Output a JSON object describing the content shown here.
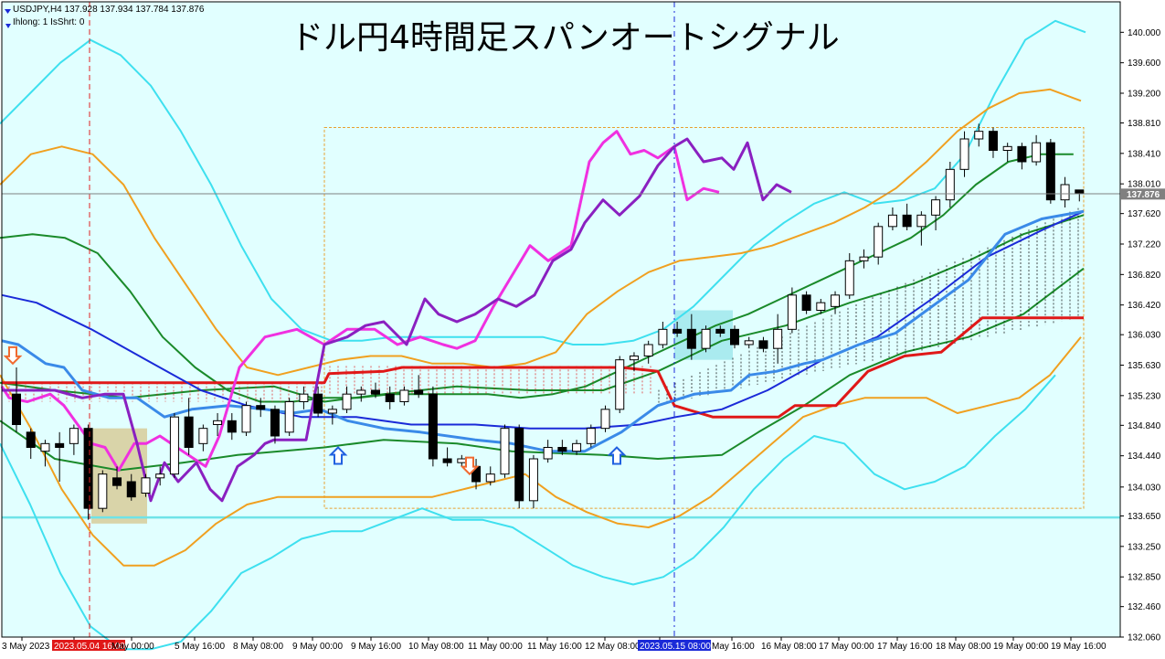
{
  "header": {
    "symbol_line": "USDJPY,H4  137.928 137.934 137.784 137.876",
    "indicator_line": "Ihlong: 1 IsShrt: 0"
  },
  "chart_data": {
    "type": "candlestick",
    "title": "ドル円4時間足スパンオートシグナル",
    "symbol": "USDJPY",
    "timeframe": "H4",
    "ohlc_header": {
      "open": 137.928,
      "high": 137.934,
      "low": 137.784,
      "close": 137.876
    },
    "current_price": "137.876",
    "ylim": [
      132.06,
      140.4
    ],
    "y_ticks": [
      "140.000",
      "139.600",
      "139.200",
      "138.810",
      "138.410",
      "138.010",
      "137.620",
      "137.220",
      "136.820",
      "136.420",
      "136.030",
      "135.630",
      "135.230",
      "134.840",
      "134.440",
      "134.030",
      "133.650",
      "133.250",
      "132.850",
      "132.460",
      "132.060"
    ],
    "x_ticks": [
      "3 May 2023",
      "2023.05.04 16:00",
      "May 00:00",
      "5 May 16:00",
      "8 May 08:00",
      "9 May 00:00",
      "9 May 16:00",
      "10 May 08:00",
      "11 May 00:00",
      "11 May 16:00",
      "12 May 08:00",
      "2023.05.15 08:00",
      "May 16:00",
      "16 May 08:00",
      "17 May 00:00",
      "17 May 16:00",
      "18 May 08:00",
      "19 May 00:00",
      "19 May 16:00"
    ],
    "highlighted_x_ticks": {
      "red": "2023.05.04 16:00",
      "blue": "2023.05.15 08:00"
    },
    "vertical_markers": [
      {
        "label": "2023.05.04 16:00",
        "color": "#e02020"
      },
      {
        "label": "2023.05.15 08:00",
        "color": "#1a2ad8"
      }
    ],
    "horizontal_lines": [
      {
        "value": 133.63,
        "color": "#6fe3e8"
      },
      {
        "value": 137.88,
        "color": "#808080"
      }
    ],
    "candles": [
      {
        "t": 1,
        "o": 135.25,
        "h": 135.6,
        "l": 134.75,
        "c": 134.85
      },
      {
        "t": 2,
        "o": 134.75,
        "h": 134.8,
        "l": 134.4,
        "c": 134.55
      },
      {
        "t": 3,
        "o": 134.5,
        "h": 134.65,
        "l": 134.3,
        "c": 134.6
      },
      {
        "t": 4,
        "o": 134.6,
        "h": 134.75,
        "l": 134.1,
        "c": 134.55
      },
      {
        "t": 5,
        "o": 134.6,
        "h": 134.85,
        "l": 134.45,
        "c": 134.8
      },
      {
        "t": 6,
        "o": 134.8,
        "h": 134.85,
        "l": 133.6,
        "c": 133.75
      },
      {
        "t": 7,
        "o": 133.75,
        "h": 134.25,
        "l": 133.7,
        "c": 134.2
      },
      {
        "t": 8,
        "o": 134.15,
        "h": 134.3,
        "l": 134.0,
        "c": 134.05
      },
      {
        "t": 9,
        "o": 134.1,
        "h": 134.2,
        "l": 133.85,
        "c": 133.9
      },
      {
        "t": 10,
        "o": 133.95,
        "h": 134.2,
        "l": 133.9,
        "c": 134.15
      },
      {
        "t": 11,
        "o": 134.15,
        "h": 134.3,
        "l": 134.05,
        "c": 134.2
      },
      {
        "t": 12,
        "o": 134.2,
        "h": 135.0,
        "l": 134.15,
        "c": 134.95
      },
      {
        "t": 13,
        "o": 134.95,
        "h": 135.2,
        "l": 134.45,
        "c": 134.55
      },
      {
        "t": 14,
        "o": 134.6,
        "h": 134.85,
        "l": 134.5,
        "c": 134.8
      },
      {
        "t": 15,
        "o": 134.85,
        "h": 135.0,
        "l": 134.7,
        "c": 134.9
      },
      {
        "t": 16,
        "o": 134.9,
        "h": 135.0,
        "l": 134.65,
        "c": 134.75
      },
      {
        "t": 17,
        "o": 134.75,
        "h": 135.15,
        "l": 134.7,
        "c": 135.1
      },
      {
        "t": 18,
        "o": 135.1,
        "h": 135.2,
        "l": 134.95,
        "c": 135.05
      },
      {
        "t": 19,
        "o": 135.05,
        "h": 135.1,
        "l": 134.6,
        "c": 134.7
      },
      {
        "t": 20,
        "o": 134.75,
        "h": 135.2,
        "l": 134.7,
        "c": 135.15
      },
      {
        "t": 21,
        "o": 135.15,
        "h": 135.35,
        "l": 135.05,
        "c": 135.25
      },
      {
        "t": 22,
        "o": 135.25,
        "h": 135.35,
        "l": 134.95,
        "c": 135.0
      },
      {
        "t": 23,
        "o": 135.0,
        "h": 135.1,
        "l": 134.85,
        "c": 135.05
      },
      {
        "t": 24,
        "o": 135.05,
        "h": 135.35,
        "l": 135.0,
        "c": 135.25
      },
      {
        "t": 25,
        "o": 135.25,
        "h": 135.35,
        "l": 135.15,
        "c": 135.3
      },
      {
        "t": 26,
        "o": 135.3,
        "h": 135.4,
        "l": 135.2,
        "c": 135.25
      },
      {
        "t": 27,
        "o": 135.25,
        "h": 135.35,
        "l": 135.05,
        "c": 135.15
      },
      {
        "t": 28,
        "o": 135.15,
        "h": 135.35,
        "l": 135.1,
        "c": 135.3
      },
      {
        "t": 29,
        "o": 135.3,
        "h": 135.5,
        "l": 135.2,
        "c": 135.25
      },
      {
        "t": 30,
        "o": 135.25,
        "h": 135.35,
        "l": 134.3,
        "c": 134.4
      },
      {
        "t": 31,
        "o": 134.4,
        "h": 134.55,
        "l": 134.3,
        "c": 134.35
      },
      {
        "t": 32,
        "o": 134.35,
        "h": 134.45,
        "l": 134.3,
        "c": 134.4
      },
      {
        "t": 33,
        "o": 134.3,
        "h": 134.4,
        "l": 134.0,
        "c": 134.1
      },
      {
        "t": 34,
        "o": 134.1,
        "h": 134.3,
        "l": 134.05,
        "c": 134.2
      },
      {
        "t": 35,
        "o": 134.2,
        "h": 134.85,
        "l": 134.15,
        "c": 134.8
      },
      {
        "t": 36,
        "o": 134.8,
        "h": 134.85,
        "l": 133.75,
        "c": 133.85
      },
      {
        "t": 37,
        "o": 133.85,
        "h": 134.45,
        "l": 133.75,
        "c": 134.4
      },
      {
        "t": 38,
        "o": 134.4,
        "h": 134.65,
        "l": 134.35,
        "c": 134.55
      },
      {
        "t": 39,
        "o": 134.55,
        "h": 134.65,
        "l": 134.45,
        "c": 134.5
      },
      {
        "t": 40,
        "o": 134.5,
        "h": 134.65,
        "l": 134.45,
        "c": 134.6
      },
      {
        "t": 41,
        "o": 134.6,
        "h": 134.85,
        "l": 134.55,
        "c": 134.8
      },
      {
        "t": 42,
        "o": 134.8,
        "h": 135.1,
        "l": 134.75,
        "c": 135.05
      },
      {
        "t": 43,
        "o": 135.05,
        "h": 135.75,
        "l": 135.0,
        "c": 135.7
      },
      {
        "t": 44,
        "o": 135.7,
        "h": 135.8,
        "l": 135.55,
        "c": 135.75
      },
      {
        "t": 45,
        "o": 135.75,
        "h": 135.95,
        "l": 135.65,
        "c": 135.9
      },
      {
        "t": 46,
        "o": 135.9,
        "h": 136.2,
        "l": 135.85,
        "c": 136.1
      },
      {
        "t": 47,
        "o": 136.1,
        "h": 136.2,
        "l": 136.0,
        "c": 136.05
      },
      {
        "t": 48,
        "o": 136.1,
        "h": 136.3,
        "l": 135.7,
        "c": 135.85
      },
      {
        "t": 49,
        "o": 135.85,
        "h": 136.15,
        "l": 135.8,
        "c": 136.1
      },
      {
        "t": 50,
        "o": 136.1,
        "h": 136.15,
        "l": 136.0,
        "c": 136.05
      },
      {
        "t": 51,
        "o": 136.1,
        "h": 136.15,
        "l": 135.85,
        "c": 135.9
      },
      {
        "t": 52,
        "o": 135.9,
        "h": 136.0,
        "l": 135.85,
        "c": 135.95
      },
      {
        "t": 53,
        "o": 135.95,
        "h": 136.0,
        "l": 135.8,
        "c": 135.85
      },
      {
        "t": 54,
        "o": 135.85,
        "h": 136.3,
        "l": 135.65,
        "c": 136.1
      },
      {
        "t": 55,
        "o": 136.1,
        "h": 136.65,
        "l": 136.05,
        "c": 136.55
      },
      {
        "t": 56,
        "o": 136.55,
        "h": 136.6,
        "l": 136.3,
        "c": 136.35
      },
      {
        "t": 57,
        "o": 136.35,
        "h": 136.5,
        "l": 136.3,
        "c": 136.45
      },
      {
        "t": 58,
        "o": 136.4,
        "h": 136.6,
        "l": 136.3,
        "c": 136.55
      },
      {
        "t": 59,
        "o": 136.55,
        "h": 137.1,
        "l": 136.5,
        "c": 137.0
      },
      {
        "t": 60,
        "o": 137.0,
        "h": 137.15,
        "l": 136.9,
        "c": 137.05
      },
      {
        "t": 61,
        "o": 137.05,
        "h": 137.5,
        "l": 136.95,
        "c": 137.45
      },
      {
        "t": 62,
        "o": 137.45,
        "h": 137.7,
        "l": 137.4,
        "c": 137.6
      },
      {
        "t": 63,
        "o": 137.6,
        "h": 137.75,
        "l": 137.4,
        "c": 137.45
      },
      {
        "t": 64,
        "o": 137.45,
        "h": 137.65,
        "l": 137.2,
        "c": 137.6
      },
      {
        "t": 65,
        "o": 137.6,
        "h": 137.85,
        "l": 137.4,
        "c": 137.8
      },
      {
        "t": 66,
        "o": 137.8,
        "h": 138.3,
        "l": 137.7,
        "c": 138.2
      },
      {
        "t": 67,
        "o": 138.2,
        "h": 138.7,
        "l": 138.1,
        "c": 138.6
      },
      {
        "t": 68,
        "o": 138.6,
        "h": 138.8,
        "l": 138.5,
        "c": 138.7
      },
      {
        "t": 69,
        "o": 138.7,
        "h": 138.75,
        "l": 138.35,
        "c": 138.45
      },
      {
        "t": 70,
        "o": 138.45,
        "h": 138.55,
        "l": 138.3,
        "c": 138.5
      },
      {
        "t": 71,
        "o": 138.5,
        "h": 138.55,
        "l": 138.2,
        "c": 138.3
      },
      {
        "t": 72,
        "o": 138.3,
        "h": 138.65,
        "l": 138.25,
        "c": 138.55
      },
      {
        "t": 73,
        "o": 138.55,
        "h": 138.6,
        "l": 137.75,
        "c": 137.8
      },
      {
        "t": 74,
        "o": 137.8,
        "h": 138.1,
        "l": 137.7,
        "c": 138.0
      },
      {
        "t": 75,
        "o": 137.93,
        "h": 137.93,
        "l": 137.78,
        "c": 137.88
      }
    ],
    "bands_upper2": [
      138.8,
      139.2,
      139.6,
      139.9,
      139.7,
      139.3,
      138.7,
      138.0,
      137.2,
      136.5,
      136.1,
      135.95,
      135.95,
      136.0,
      136.0,
      136.0,
      136.0,
      136.0,
      136.0,
      135.9,
      135.9,
      135.95,
      136.1,
      136.4,
      136.8,
      137.2,
      137.5,
      137.75,
      137.9,
      137.75,
      137.8,
      137.95,
      138.4,
      139.2,
      139.9,
      140.15,
      140.0
    ],
    "bands_upper1": [
      138.0,
      138.4,
      138.5,
      138.4,
      138.0,
      137.3,
      136.7,
      136.1,
      135.6,
      135.5,
      135.6,
      135.7,
      135.75,
      135.75,
      135.65,
      135.65,
      135.6,
      135.65,
      135.8,
      136.3,
      136.6,
      136.85,
      137.0,
      137.05,
      137.1,
      137.2,
      137.35,
      137.5,
      137.7,
      137.95,
      138.3,
      138.7,
      139.0,
      139.2,
      139.25,
      139.1
    ],
    "bands_mid": [
      137.3,
      137.35,
      137.3,
      137.1,
      136.6,
      136.0,
      135.6,
      135.3,
      135.15,
      135.15,
      135.2,
      135.2,
      135.25,
      135.25,
      135.25,
      135.25,
      135.2,
      135.25,
      135.35,
      135.55,
      135.75,
      135.95,
      136.15,
      136.3,
      136.5,
      136.7,
      136.9,
      137.1,
      137.3,
      137.6,
      138.0,
      138.3,
      138.4,
      138.4
    ],
    "bands_lower1": [
      135.5,
      134.8,
      134.0,
      133.4,
      133.0,
      133.0,
      133.2,
      133.55,
      133.8,
      133.9,
      133.9,
      133.9,
      133.9,
      133.9,
      133.9,
      134.0,
      134.1,
      134.2,
      133.9,
      133.7,
      133.55,
      133.5,
      133.65,
      133.9,
      134.25,
      134.6,
      134.95,
      135.1,
      135.2,
      135.2,
      135.2,
      135.0,
      135.1,
      135.2,
      135.5,
      136.0
    ],
    "bands_lower2": [
      134.6,
      133.8,
      132.9,
      132.2,
      131.9,
      131.9,
      132.0,
      132.4,
      132.9,
      133.1,
      133.35,
      133.45,
      133.45,
      133.6,
      133.75,
      133.6,
      133.6,
      133.5,
      133.25,
      133.0,
      132.85,
      132.75,
      132.85,
      133.1,
      133.5,
      134.0,
      134.4,
      134.7,
      134.6,
      134.2,
      134.0,
      134.1,
      134.3,
      134.7,
      135.05,
      135.5
    ]
  },
  "colors": {
    "background": "#e1ffff",
    "plot_border": "#000000",
    "bullish_candle": "#ffffff",
    "bearish_candle": "#000000",
    "band_outer": "#3ee0ef",
    "band_inner": "#f0a020",
    "band_mid": "#1a8a2a",
    "red_line": "#e01818",
    "blue_line": "#1a2ad8",
    "light_blue_line": "#3a8ae8",
    "magenta_line": "#f030e0",
    "purple_line": "#8a20c0",
    "cyan_box": "#a0e8ec",
    "tan_box": "#d8cfa0",
    "price_label_bg": "#808080"
  },
  "annotations": {
    "arrows": [
      {
        "direction": "down",
        "color": "#f06a30"
      },
      {
        "direction": "up",
        "color": "#2060e0"
      },
      {
        "direction": "down",
        "color": "#f06a30"
      },
      {
        "direction": "up",
        "color": "#2060e0"
      }
    ]
  }
}
